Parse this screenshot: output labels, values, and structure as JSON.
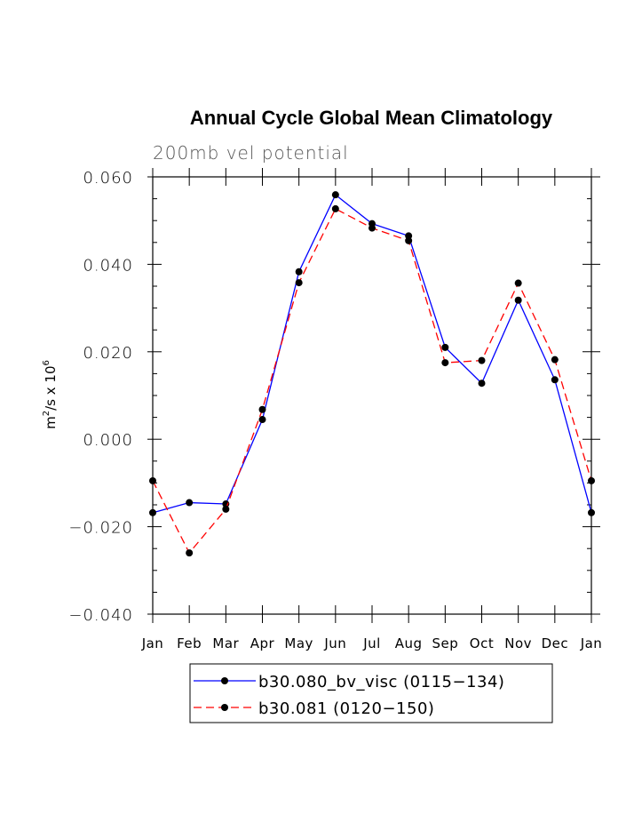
{
  "chart_data": {
    "type": "line",
    "title": "Annual Cycle Global Mean Climatology",
    "subtitle": "200mb vel potential",
    "ylabel": "m²/s x 10⁶",
    "ylabel_parts": {
      "base": "m",
      "sup1": "2",
      "mid": "/s x 10",
      "sup2": "6"
    },
    "xlabel": "",
    "categories": [
      "Jan",
      "Feb",
      "Mar",
      "Apr",
      "May",
      "Jun",
      "Jul",
      "Aug",
      "Sep",
      "Oct",
      "Nov",
      "Dec",
      "Jan"
    ],
    "ylim": [
      -0.04,
      0.06
    ],
    "yticks": [
      -0.04,
      -0.02,
      0.0,
      0.02,
      0.04,
      0.06
    ],
    "ytick_labels": [
      "−0.040",
      "−0.020",
      "0.000",
      "0.020",
      "0.040",
      "0.060"
    ],
    "series": [
      {
        "name": "b30.080_bv_visc (0115−134)",
        "color": "#0000ff",
        "dash": "solid",
        "values": [
          -0.0168,
          -0.0145,
          -0.0148,
          0.0045,
          0.0383,
          0.0559,
          0.0493,
          0.0465,
          0.021,
          0.0128,
          0.0318,
          0.0136,
          -0.0168
        ]
      },
      {
        "name": "b30.081 (0120−150)",
        "color": "#ff0000",
        "dash": "dashed",
        "values": [
          -0.0095,
          -0.026,
          -0.016,
          0.0068,
          0.0358,
          0.0527,
          0.0483,
          0.0454,
          0.0175,
          0.018,
          0.0357,
          0.0182,
          -0.0095
        ]
      }
    ],
    "legend_position": "bottom"
  }
}
